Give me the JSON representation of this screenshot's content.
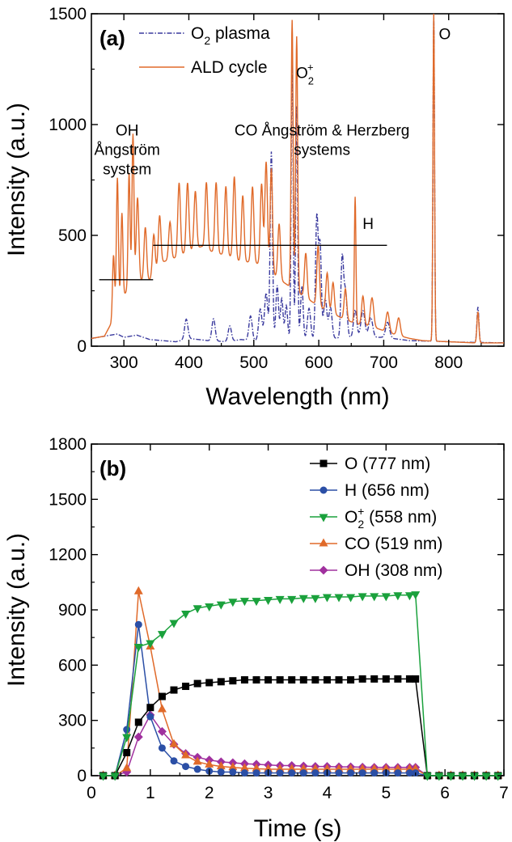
{
  "chart_data": [
    {
      "panel_label": "(a)",
      "type": "line",
      "xlabel": "Wavelength (nm)",
      "ylabel": "Intensity (a.u.)",
      "xlim": [
        250,
        885
      ],
      "ylim": [
        0,
        1500
      ],
      "xticks": [
        300,
        400,
        500,
        600,
        700,
        800
      ],
      "yticks": [
        0,
        500,
        1000,
        1500
      ],
      "legend_position": "top-left",
      "series": [
        {
          "name": "O2 plasma",
          "color": "#3a3a9e",
          "style": "dash-dot",
          "baseline": [
            [
              250,
              35
            ],
            [
              290,
              55
            ],
            [
              300,
              40
            ],
            [
              320,
              50
            ],
            [
              340,
              30
            ],
            [
              380,
              20
            ],
            [
              400,
              35
            ],
            [
              430,
              25
            ],
            [
              460,
              20
            ],
            [
              480,
              30
            ],
            [
              500,
              25
            ],
            [
              540,
              35
            ],
            [
              580,
              30
            ],
            [
              620,
              35
            ],
            [
              660,
              40
            ],
            [
              700,
              40
            ],
            [
              740,
              25
            ],
            [
              780,
              22
            ],
            [
              820,
              18
            ],
            [
              885,
              15
            ]
          ],
          "peaks": [
            [
              396,
              90,
              2.5
            ],
            [
              438,
              100,
              2.5
            ],
            [
              463,
              70,
              2.5
            ],
            [
              495,
              110,
              2.5
            ],
            [
              510,
              140,
              2.5
            ],
            [
              519,
              210,
              2.5
            ],
            [
              527,
              845,
              1.8
            ],
            [
              536,
              240,
              2
            ],
            [
              543,
              180,
              2
            ],
            [
              550,
              150,
              2
            ],
            [
              559,
              1280,
              1.5
            ],
            [
              566,
              1050,
              1.5
            ],
            [
              574,
              240,
              2
            ],
            [
              585,
              140,
              2.5
            ],
            [
              597,
              550,
              2
            ],
            [
              602,
              420,
              2
            ],
            [
              610,
              180,
              2.5
            ],
            [
              618,
              140,
              2.5
            ],
            [
              636,
              350,
              2
            ],
            [
              641,
              210,
              2.5
            ],
            [
              656,
              125,
              2.5
            ],
            [
              668,
              120,
              3
            ],
            [
              680,
              90,
              3
            ],
            [
              706,
              70,
              3
            ],
            [
              777,
              1500,
              1.2
            ],
            [
              845,
              160,
              1.5
            ]
          ]
        },
        {
          "name": "ALD cycle",
          "color": "#e06a2a",
          "style": "solid",
          "baseline": [
            [
              250,
              35
            ],
            [
              270,
              45
            ],
            [
              280,
              100
            ],
            [
              290,
              200
            ],
            [
              300,
              230
            ],
            [
              310,
              270
            ],
            [
              320,
              290
            ],
            [
              340,
              300
            ],
            [
              360,
              380
            ],
            [
              380,
              400
            ],
            [
              400,
              430
            ],
            [
              420,
              450
            ],
            [
              440,
              420
            ],
            [
              460,
              410
            ],
            [
              480,
              380
            ],
            [
              500,
              380
            ],
            [
              520,
              350
            ],
            [
              540,
              300
            ],
            [
              560,
              260
            ],
            [
              580,
              220
            ],
            [
              600,
              180
            ],
            [
              620,
              150
            ],
            [
              640,
              120
            ],
            [
              660,
              100
            ],
            [
              680,
              90
            ],
            [
              700,
              70
            ],
            [
              720,
              50
            ],
            [
              740,
              35
            ],
            [
              760,
              25
            ],
            [
              800,
              20
            ],
            [
              840,
              15
            ],
            [
              885,
              15
            ]
          ],
          "peaks": [
            [
              284,
              270,
              1.5
            ],
            [
              290,
              560,
              1.5
            ],
            [
              297,
              380,
              1.5
            ],
            [
              308,
              520,
              1.5
            ],
            [
              314,
              680,
              1.5
            ],
            [
              321,
              380,
              2
            ],
            [
              333,
              240,
              2
            ],
            [
              346,
              180,
              2
            ],
            [
              355,
              230,
              2
            ],
            [
              371,
              170,
              2
            ],
            [
              385,
              330,
              2
            ],
            [
              398,
              310,
              2
            ],
            [
              410,
              260,
              2
            ],
            [
              427,
              300,
              2
            ],
            [
              442,
              320,
              2
            ],
            [
              457,
              310,
              2
            ],
            [
              470,
              370,
              2
            ],
            [
              483,
              300,
              2
            ],
            [
              498,
              340,
              2
            ],
            [
              512,
              370,
              2
            ],
            [
              519,
              480,
              2
            ],
            [
              527,
              470,
              1.8
            ],
            [
              539,
              250,
              2
            ],
            [
              559,
              1210,
              1.5
            ],
            [
              566,
              1150,
              1.5
            ],
            [
              580,
              200,
              2
            ],
            [
              599,
              270,
              2
            ],
            [
              613,
              170,
              2
            ],
            [
              622,
              140,
              2
            ],
            [
              641,
              140,
              2
            ],
            [
              656,
              570,
              1.2
            ],
            [
              668,
              130,
              2
            ],
            [
              682,
              130,
              2.5
            ],
            [
              706,
              90,
              2.5
            ],
            [
              723,
              80,
              2.5
            ],
            [
              777,
              1500,
              1.2
            ],
            [
              845,
              140,
              1.5
            ]
          ]
        }
      ],
      "legend": {
        "entries": [
          {
            "base": "O",
            "sub": "2",
            "rest": " plasma"
          },
          {
            "base": "ALD cycle",
            "sub": "",
            "rest": ""
          }
        ]
      },
      "annotations": [
        {
          "lines": [
            "OH",
            "Ångström",
            "system"
          ],
          "x": 305,
          "y": 950
        },
        {
          "lines": [
            "CO Ångström & Herzberg",
            "systems"
          ],
          "x": 605,
          "y": 950
        },
        {
          "lines": [
            "H"
          ],
          "x": 676,
          "y": 530
        },
        {
          "lines": [
            "O"
          ],
          "x": 794,
          "y": 1385
        }
      ],
      "o2plus_label": {
        "base": "O",
        "sub": "2",
        "sup": "+",
        "x": 565,
        "y": 1210
      },
      "ranges": [
        {
          "x1": 262,
          "x2": 345,
          "y": 300
        },
        {
          "x1": 345,
          "x2": 705,
          "y": 455
        }
      ]
    },
    {
      "panel_label": "(b)",
      "type": "line",
      "xlabel": "Time (s)",
      "ylabel": "Intensity (a.u.)",
      "xlim": [
        0,
        7
      ],
      "ylim": [
        0,
        1800
      ],
      "xticks": [
        0,
        1,
        2,
        3,
        4,
        5,
        6,
        7
      ],
      "yticks": [
        0,
        300,
        600,
        900,
        1200,
        1500,
        1800
      ],
      "legend_position": "top-right",
      "x": [
        0.2,
        0.4,
        0.6,
        0.8,
        1.0,
        1.2,
        1.4,
        1.6,
        1.8,
        2.0,
        2.2,
        2.4,
        2.6,
        2.8,
        3.0,
        3.2,
        3.4,
        3.6,
        3.8,
        4.0,
        4.2,
        4.4,
        4.6,
        4.8,
        5.0,
        5.2,
        5.4,
        5.5,
        5.7,
        5.9,
        6.1,
        6.3,
        6.5,
        6.7,
        6.9
      ],
      "series": [
        {
          "name": "O (777 nm)",
          "color": "#000000",
          "marker": "square",
          "values": [
            0,
            0,
            125,
            290,
            370,
            430,
            465,
            485,
            500,
            505,
            510,
            515,
            520,
            520,
            520,
            520,
            520,
            520,
            520,
            520,
            520,
            520,
            525,
            525,
            525,
            525,
            525,
            525,
            0,
            0,
            0,
            0,
            0,
            0,
            0
          ]
        },
        {
          "name": "H (656 nm)",
          "color": "#2b4fa6",
          "marker": "circle",
          "values": [
            0,
            0,
            250,
            820,
            320,
            150,
            80,
            50,
            35,
            25,
            20,
            20,
            15,
            15,
            15,
            15,
            15,
            15,
            15,
            15,
            15,
            15,
            15,
            15,
            15,
            15,
            15,
            15,
            0,
            0,
            0,
            0,
            0,
            0,
            0
          ]
        },
        {
          "name": "O2+ (558 nm)",
          "color": "#1aa13c",
          "marker": "triangle-down",
          "label_parts": {
            "base": "O",
            "sub": "2",
            "sup": "+",
            "rest": " (558 nm)"
          },
          "values": [
            0,
            0,
            210,
            700,
            720,
            770,
            830,
            880,
            910,
            920,
            930,
            945,
            950,
            950,
            955,
            960,
            960,
            965,
            965,
            970,
            970,
            970,
            975,
            975,
            975,
            980,
            980,
            985,
            0,
            0,
            0,
            0,
            0,
            0,
            0
          ]
        },
        {
          "name": "CO (519 nm)",
          "color": "#e06a2a",
          "marker": "triangle-up",
          "values": [
            0,
            0,
            40,
            1000,
            700,
            360,
            170,
            110,
            75,
            60,
            50,
            45,
            40,
            38,
            35,
            35,
            35,
            35,
            35,
            35,
            35,
            35,
            35,
            35,
            35,
            35,
            35,
            35,
            0,
            0,
            0,
            0,
            0,
            0,
            0
          ]
        },
        {
          "name": "OH (308 nm)",
          "color": "#a0309e",
          "marker": "diamond",
          "values": [
            0,
            0,
            20,
            210,
            330,
            240,
            170,
            120,
            100,
            85,
            75,
            70,
            65,
            62,
            58,
            55,
            55,
            52,
            50,
            50,
            48,
            48,
            46,
            45,
            45,
            45,
            45,
            45,
            0,
            0,
            0,
            0,
            0,
            0,
            0
          ]
        }
      ]
    }
  ]
}
